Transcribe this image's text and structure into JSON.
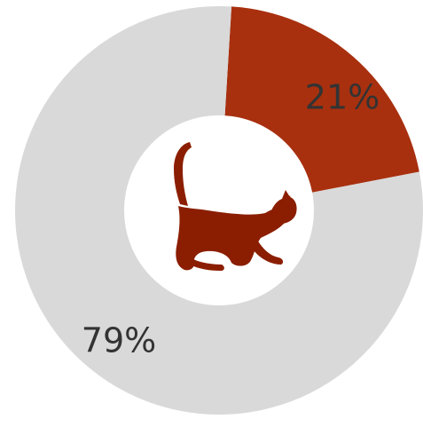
{
  "chart_data": {
    "type": "pie",
    "donut": true,
    "slices": [
      {
        "label": "21%",
        "value": 21,
        "color": "#a8300f"
      },
      {
        "label": "79%",
        "value": 79,
        "color": "#d9d9d9"
      }
    ],
    "center_icon": "cat-icon",
    "center_icon_color": "#8b1e00"
  }
}
